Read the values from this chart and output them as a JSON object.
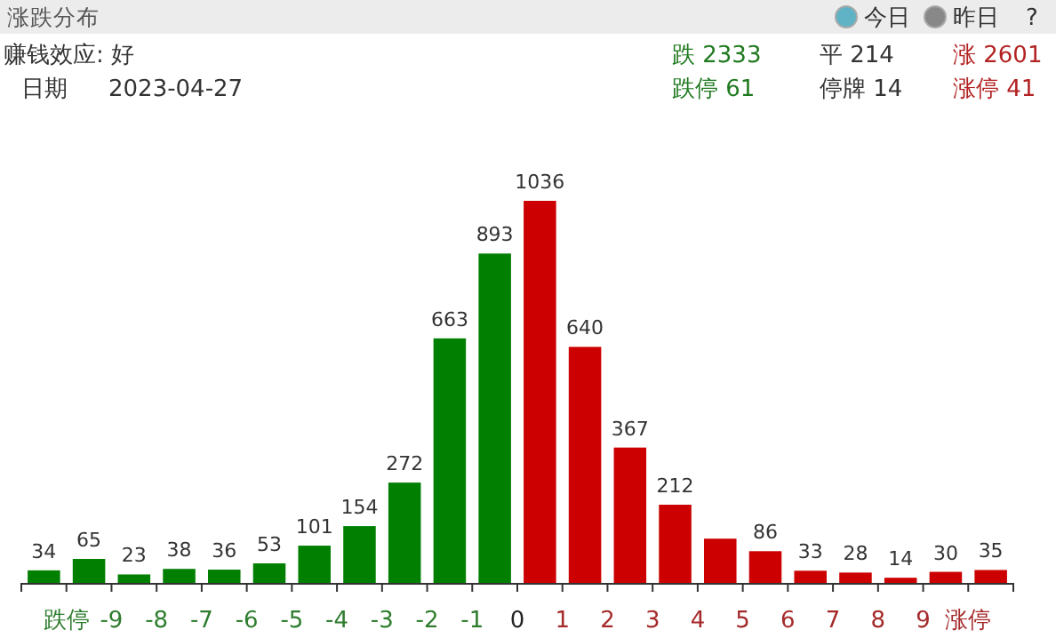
{
  "chart_data": {
    "type": "bar",
    "title": "涨跌分布",
    "x": [
      -10.5,
      -9.5,
      -8.5,
      -7.5,
      -6.5,
      -5.5,
      -4.5,
      -3.5,
      -2.5,
      -1.5,
      -0.5,
      0.5,
      1.5,
      2.5,
      3.5,
      4.5,
      5.5,
      6.5,
      7.5,
      8.5,
      9.5,
      10.5
    ],
    "values": [
      34,
      65,
      23,
      38,
      36,
      53,
      101,
      154,
      272,
      663,
      893,
      1036,
      640,
      367,
      212,
      120,
      86,
      33,
      28,
      14,
      30,
      35
    ],
    "value_labels": [
      "34",
      "65",
      "23",
      "38",
      "36",
      "53",
      "101",
      "154",
      "272",
      "663",
      "893",
      "1036",
      "640",
      "367",
      "212",
      null,
      "86",
      "33",
      "28",
      "14",
      "30",
      "35"
    ],
    "colors": [
      "#007f00",
      "#007f00",
      "#007f00",
      "#007f00",
      "#007f00",
      "#007f00",
      "#007f00",
      "#007f00",
      "#007f00",
      "#007f00",
      "#007f00",
      "#cc0000",
      "#cc0000",
      "#cc0000",
      "#cc0000",
      "#cc0000",
      "#cc0000",
      "#cc0000",
      "#cc0000",
      "#cc0000",
      "#cc0000",
      "#cc0000"
    ],
    "xlim": [
      -11,
      11
    ],
    "xticks": [
      {
        "value": -11,
        "label": null
      },
      {
        "value": -10,
        "label": "跌停"
      },
      -9,
      -8,
      -7,
      -6,
      -5,
      -4,
      -3,
      -2,
      -1,
      0,
      1,
      2,
      3,
      4,
      5,
      6,
      7,
      8,
      9,
      {
        "value": 10,
        "label": "涨停"
      },
      {
        "value": 11,
        "label": null
      }
    ],
    "tick_labels": "x",
    "annotations": [
      "今日",
      "昨日",
      "?",
      "赚钱效应: 好",
      "日期",
      "2023-04-27",
      "跌 2333",
      "平 214",
      "涨 2601",
      "跌停 61",
      "停牌 14",
      "涨停 41"
    ]
  }
}
